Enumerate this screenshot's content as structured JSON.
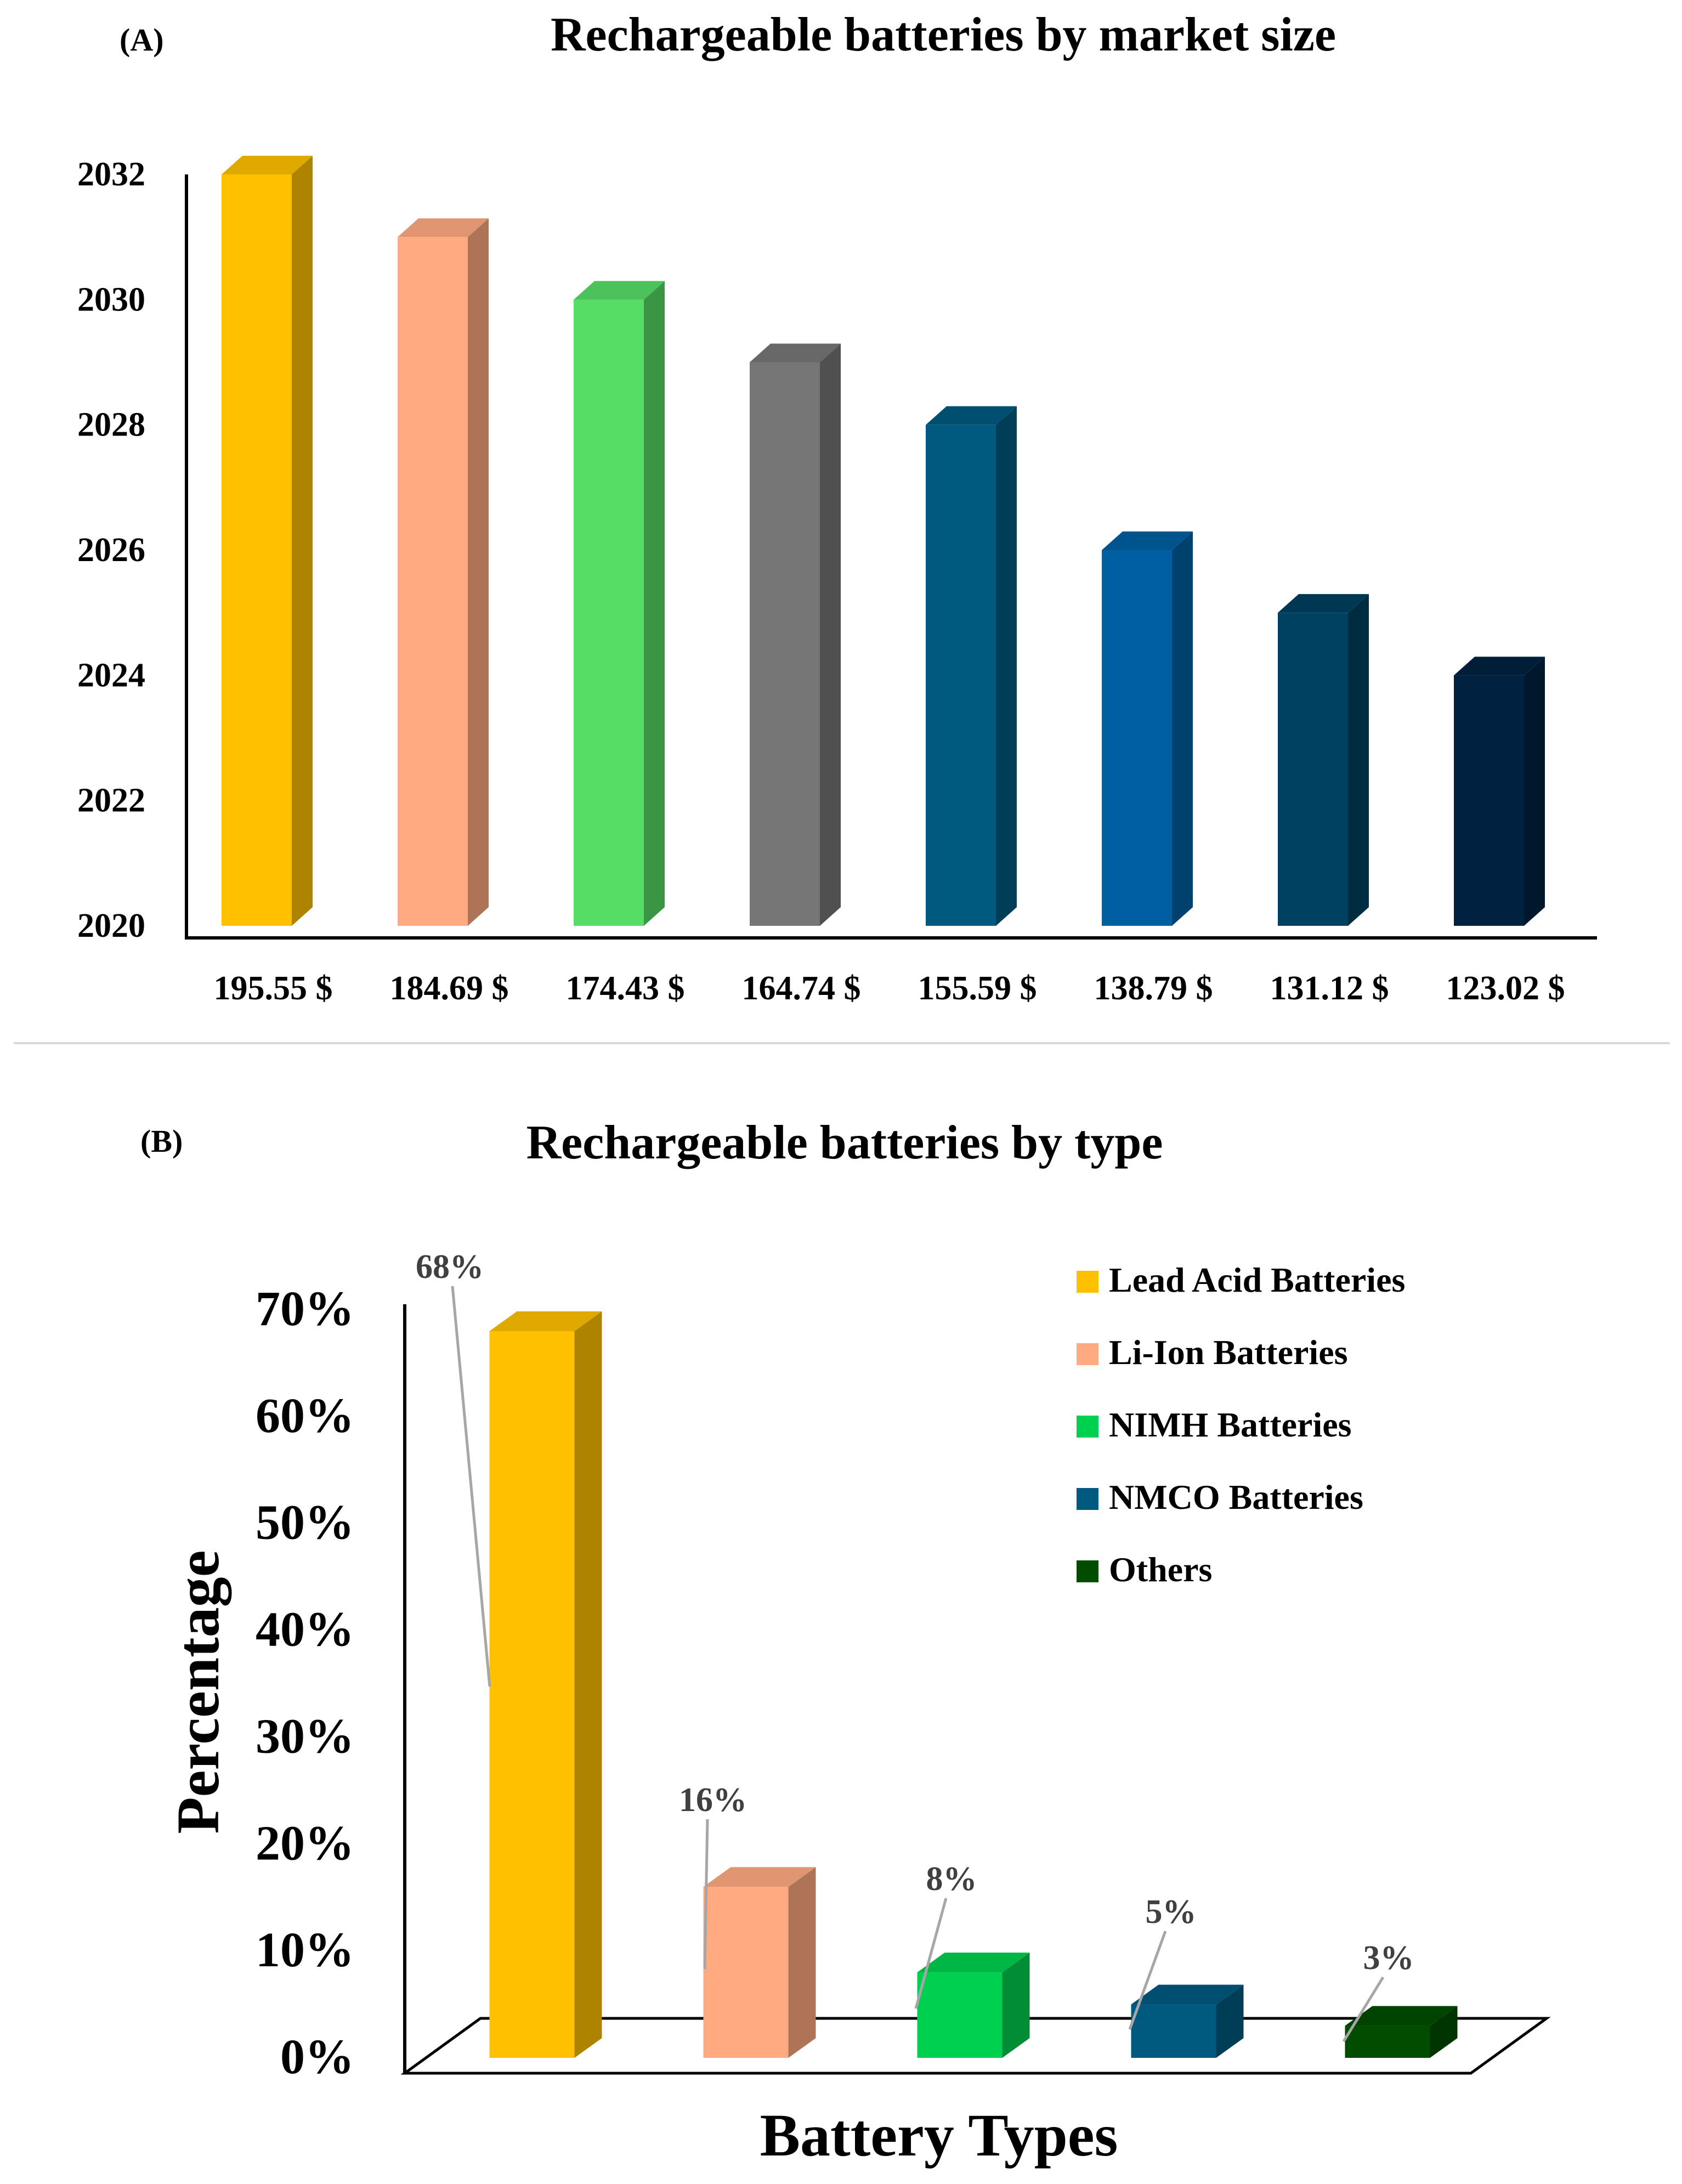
{
  "chart_data": [
    {
      "panel_label": "(A)",
      "type": "bar",
      "title": "Rechargeable batteries by market size",
      "categories": [
        "195.55 $",
        "184.69 $",
        "174.43 $",
        "164.74 $",
        "155.59 $",
        "138.79 $",
        "131.12 $",
        "123.02 $"
      ],
      "values": [
        2032,
        2031,
        2030,
        2029,
        2028,
        2026,
        2025,
        2024
      ],
      "ylim": [
        2020,
        2032
      ],
      "yticks": [
        2020,
        2022,
        2024,
        2026,
        2028,
        2030,
        2032
      ],
      "xlabel": "",
      "ylabel": "",
      "colors": [
        "#FFC000",
        "#FFAA80",
        "#55DD66",
        "#767676",
        "#005A80",
        "#005FA0",
        "#004060",
        "#002240"
      ]
    },
    {
      "panel_label": "(B)",
      "type": "bar",
      "title": "Rechargeable batteries by type",
      "categories": [
        "Lead Acid Batteries",
        "Li-Ion Batteries",
        "NIMH Batteries",
        "NMCO Batteries",
        "Others"
      ],
      "values": [
        68,
        16,
        8,
        5,
        3
      ],
      "data_labels": [
        "68%",
        "16%",
        "8%",
        "5%",
        "3%"
      ],
      "ylim": [
        0,
        70
      ],
      "yticks": [
        "0%",
        "10%",
        "20%",
        "30%",
        "40%",
        "50%",
        "60%",
        "70%"
      ],
      "xlabel": "Battery Types",
      "ylabel": "Percentage",
      "legend_position": "top-right",
      "colors": [
        "#FFC000",
        "#FFAA80",
        "#00D050",
        "#005A80",
        "#004D00"
      ]
    }
  ]
}
